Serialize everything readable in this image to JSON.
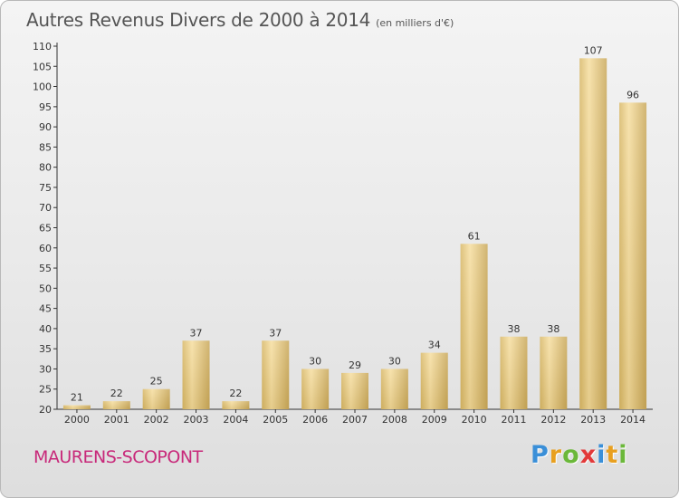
{
  "header": {
    "title": "Autres Revenus Divers de 2000 à 2014",
    "unit": "(en milliers d'€)"
  },
  "footer": {
    "town": "MAURENS-SCOPONT",
    "logo_text": "Proxiti",
    "logo_letter_colors": [
      "#3a8fd8",
      "#e8a020",
      "#6bb83a",
      "#e23a3a",
      "#3a8fd8",
      "#e8a020",
      "#6bb83a"
    ]
  },
  "chart_data": {
    "type": "bar",
    "title": "Autres Revenus Divers de 2000 à 2014",
    "xlabel": "",
    "ylabel": "",
    "ylim": [
      20,
      110
    ],
    "ytick_step": 5,
    "grid": false,
    "categories": [
      "2000",
      "2001",
      "2002",
      "2003",
      "2004",
      "2005",
      "2006",
      "2007",
      "2008",
      "2009",
      "2010",
      "2011",
      "2012",
      "2013",
      "2014"
    ],
    "values": [
      21,
      22,
      25,
      37,
      22,
      37,
      30,
      29,
      30,
      34,
      61,
      38,
      38,
      107,
      96
    ],
    "bar_color": "#e8cc80"
  }
}
